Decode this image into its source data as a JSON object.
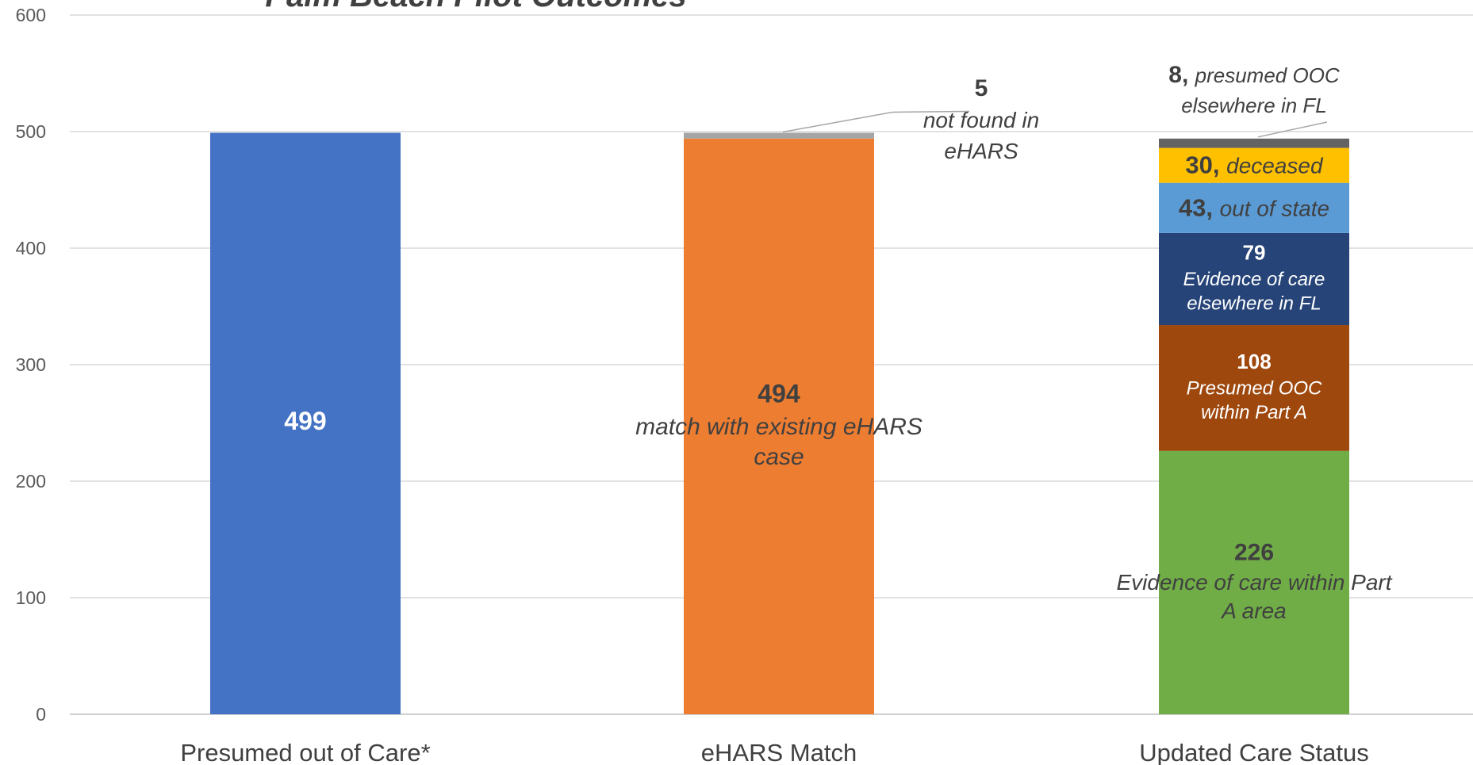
{
  "chart_data": {
    "type": "bar",
    "stacked": true,
    "title": "Palm Beach Pilot Outcomes",
    "ylim": [
      0,
      600
    ],
    "yticks": [
      0,
      100,
      200,
      300,
      400,
      500,
      600
    ],
    "grid": true,
    "categories": [
      "Presumed out of Care*",
      "eHARS Match",
      "Updated Care Status"
    ],
    "stacks": [
      [
        {
          "value": 499,
          "color": "#4472C4",
          "value_label": "499",
          "note": [],
          "label_color": "#FFFFFF",
          "note_color": "#FFFFFF",
          "inline": false,
          "size": 30
        }
      ],
      [
        {
          "value": 494,
          "color": "#ED7D31",
          "value_label": "494",
          "note": [
            "match with existing eHARS",
            "case"
          ],
          "label_color": "#404040",
          "note_color": "#404040",
          "inline": false,
          "size": 30
        },
        {
          "value": 5,
          "color": "#A5A5A5",
          "value_label": "5",
          "note": [
            "not found in",
            "eHARS"
          ],
          "label_color": "#404040",
          "note_color": "#404040",
          "inline": false,
          "size": 28,
          "callout": true
        }
      ],
      [
        {
          "value": 226,
          "color": "#70AD47",
          "value_label": "226",
          "note": [
            "Evidence of care within Part",
            "A area"
          ],
          "label_color": "#404040",
          "note_color": "#404040",
          "inline": false,
          "size": 28
        },
        {
          "value": 108,
          "color": "#9E480E",
          "value_label": "108",
          "note": [
            "Presumed OOC",
            "within Part A"
          ],
          "label_color": "#FFFFFF",
          "note_color": "#FFFFFF",
          "inline": false,
          "size": 24
        },
        {
          "value": 79,
          "color": "#264478",
          "value_label": "79",
          "note": [
            "Evidence of care",
            "elsewhere in FL"
          ],
          "label_color": "#FFFFFF",
          "note_color": "#FFFFFF",
          "inline": false,
          "size": 24
        },
        {
          "value": 43,
          "color": "#5B9BD5",
          "value_label": "43,",
          "note": [
            "out of state"
          ],
          "label_color": "#404040",
          "note_color": "#404040",
          "inline": true,
          "size": 28
        },
        {
          "value": 30,
          "color": "#FFC000",
          "value_label": "30,",
          "note": [
            "deceased"
          ],
          "label_color": "#404040",
          "note_color": "#404040",
          "inline": true,
          "size": 28
        },
        {
          "value": 8,
          "color": "#636363",
          "value_label": "8,",
          "note": [
            "presumed OOC",
            "elsewhere in FL"
          ],
          "label_color": "#404040",
          "note_color": "#404040",
          "inline": true,
          "size": 26,
          "callout": true
        }
      ]
    ]
  }
}
